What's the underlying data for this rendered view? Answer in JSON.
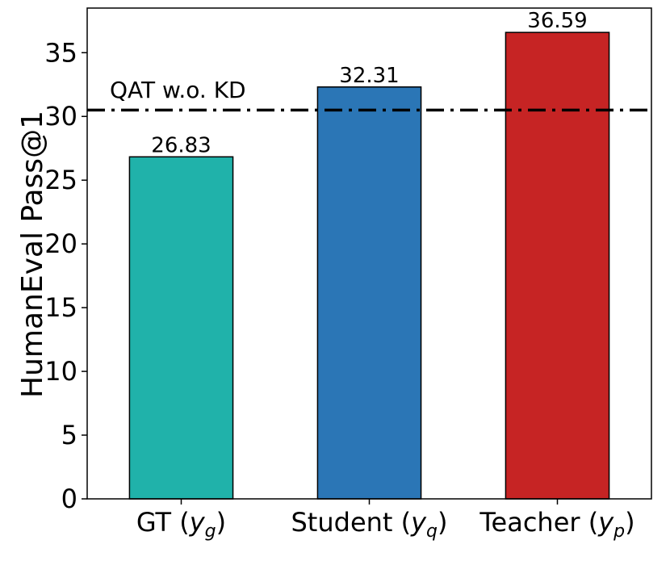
{
  "chart_data": {
    "type": "bar",
    "categories": [
      "GT (y_g)",
      "Student (y_q)",
      "Teacher (y_p)"
    ],
    "category_parts": [
      {
        "prefix": "GT (",
        "var": "y",
        "sub": "g",
        "suffix": ")"
      },
      {
        "prefix": "Student (",
        "var": "y",
        "sub": "q",
        "suffix": ")"
      },
      {
        "prefix": "Teacher (",
        "var": "y",
        "sub": "p",
        "suffix": ")"
      }
    ],
    "values": [
      26.83,
      32.31,
      36.59
    ],
    "value_labels": [
      "26.83",
      "32.31",
      "36.59"
    ],
    "colors": [
      "#20b2aa",
      "#2b76b6",
      "#c62424"
    ],
    "reference_line": {
      "label": "QAT w.o. KD",
      "value": 30.5,
      "style": "dash-dot",
      "color": "#000000"
    },
    "title": "",
    "xlabel": "",
    "ylabel": "HumanEval Pass@1",
    "ylim": [
      0,
      38.5
    ],
    "yticks": [
      0,
      5,
      10,
      15,
      20,
      25,
      30,
      35
    ],
    "grid": false
  }
}
